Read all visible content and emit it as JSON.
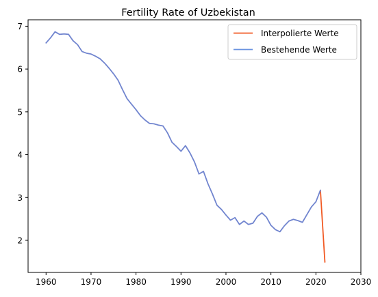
{
  "chart_data": {
    "type": "line",
    "title": "Fertility Rate of Uzbekistan",
    "xlabel": "",
    "ylabel": "",
    "xlim": [
      1956,
      2030
    ],
    "ylim": [
      1.25,
      7.15
    ],
    "xticks": [
      1960,
      1970,
      1980,
      1990,
      2000,
      2010,
      2020,
      2030
    ],
    "yticks": [
      2,
      3,
      4,
      5,
      6,
      7
    ],
    "grid": false,
    "legend_position": "top-right",
    "series": [
      {
        "name": "Interpolierte Werte",
        "color": "#f15a24",
        "x": [
          2021,
          2022
        ],
        "y": [
          3.17,
          1.49
        ]
      },
      {
        "name": "Bestehende Werte",
        "color": "#7185cf",
        "legend_color": "#6a93e0",
        "x": [
          1960,
          1961,
          1962,
          1963,
          1964,
          1965,
          1966,
          1967,
          1968,
          1969,
          1970,
          1971,
          1972,
          1973,
          1974,
          1975,
          1976,
          1977,
          1978,
          1979,
          1980,
          1981,
          1982,
          1983,
          1984,
          1985,
          1986,
          1987,
          1988,
          1989,
          1990,
          1991,
          1992,
          1993,
          1994,
          1995,
          1996,
          1997,
          1998,
          1999,
          2000,
          2001,
          2002,
          2003,
          2004,
          2005,
          2006,
          2007,
          2008,
          2009,
          2010,
          2011,
          2012,
          2013,
          2014,
          2015,
          2016,
          2017,
          2018,
          2019,
          2020,
          2021
        ],
        "y": [
          6.61,
          6.73,
          6.87,
          6.81,
          6.82,
          6.81,
          6.66,
          6.57,
          6.41,
          6.37,
          6.35,
          6.3,
          6.24,
          6.14,
          6.02,
          5.89,
          5.74,
          5.52,
          5.31,
          5.18,
          5.05,
          4.91,
          4.81,
          4.73,
          4.72,
          4.69,
          4.67,
          4.51,
          4.29,
          4.19,
          4.08,
          4.21,
          4.04,
          3.83,
          3.55,
          3.61,
          3.32,
          3.08,
          2.82,
          2.72,
          2.59,
          2.47,
          2.53,
          2.37,
          2.45,
          2.37,
          2.4,
          2.56,
          2.64,
          2.54,
          2.35,
          2.25,
          2.2,
          2.34,
          2.45,
          2.49,
          2.46,
          2.42,
          2.6,
          2.78,
          2.9,
          3.17
        ]
      }
    ]
  }
}
